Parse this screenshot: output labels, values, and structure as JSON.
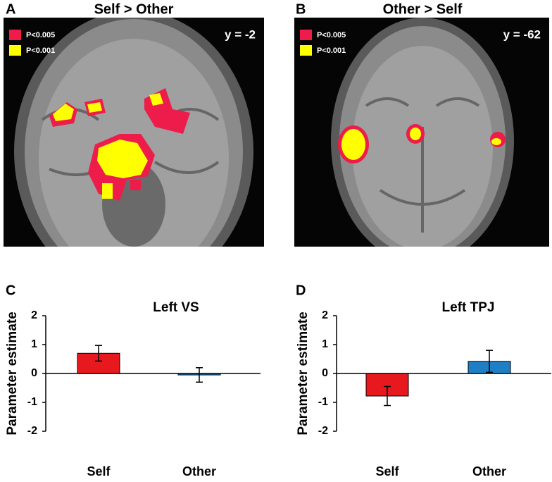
{
  "images": [
    {
      "letter": "A",
      "title": "Self > Other",
      "coordinate": "y = -2",
      "legend": [
        {
          "label": "P<0.005",
          "color": "#ee1c4a"
        },
        {
          "label": "P<0.001",
          "color": "#ffff00"
        }
      ]
    },
    {
      "letter": "B",
      "title": "Other > Self",
      "coordinate": "y = -62",
      "legend": [
        {
          "label": "P<0.005",
          "color": "#ee1c4a"
        },
        {
          "label": "P<0.001",
          "color": "#ffff00"
        }
      ]
    }
  ],
  "chart_data": [
    {
      "type": "bar",
      "letter": "C",
      "title": "Left VS",
      "ylabel": "Parameter estimate",
      "categories": [
        "Self",
        "Other"
      ],
      "values": [
        0.7,
        -0.05
      ],
      "errors": [
        0.27,
        0.25
      ],
      "colors": [
        "#e8191e",
        "#1f7fc4"
      ],
      "ylim": [
        -2,
        2
      ],
      "yticks": [
        -2,
        -1,
        0,
        1,
        2
      ]
    },
    {
      "type": "bar",
      "letter": "D",
      "title": "Left TPJ",
      "ylabel": "Parameter estimate",
      "categories": [
        "Self",
        "Other"
      ],
      "values": [
        -0.78,
        0.42
      ],
      "errors": [
        0.33,
        0.38
      ],
      "colors": [
        "#e8191e",
        "#1f7fc4"
      ],
      "ylim": [
        -2,
        2
      ],
      "yticks": [
        -2,
        -1,
        0,
        1,
        2
      ]
    }
  ]
}
